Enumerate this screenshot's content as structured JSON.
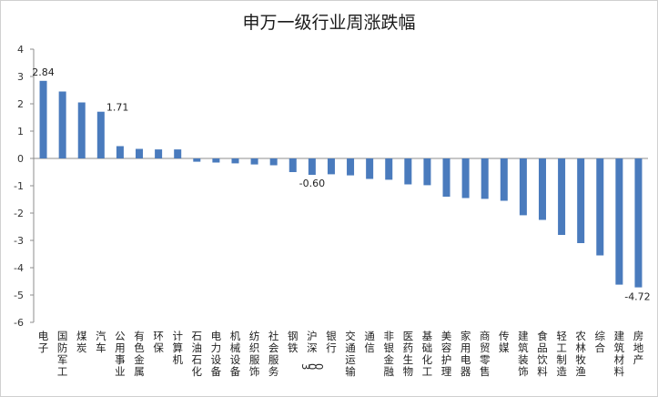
{
  "chart_data": {
    "type": "bar",
    "title": "申万一级行业周涨跌幅",
    "ylim": [
      -6,
      4
    ],
    "yticks": [
      4,
      3,
      2,
      1,
      0,
      -1,
      -2,
      -3,
      -4,
      -5,
      -6
    ],
    "grid": false,
    "legend": "none",
    "bar_color": "#4a7bbd",
    "categories": [
      "电子",
      "国防军工",
      "煤炭",
      "汽车",
      "公用事业",
      "有色金属",
      "环保",
      "计算机",
      "石油石化",
      "电力设备",
      "机械设备",
      "纺织服饰",
      "社会服务",
      "钢铁",
      "沪深300",
      "银行",
      "交通运输",
      "通信",
      "非银金融",
      "医药生物",
      "基础化工",
      "美容护理",
      "家用电器",
      "商贸零售",
      "传媒",
      "建筑装饰",
      "食品饮料",
      "轻工制造",
      "农林牧渔",
      "综合",
      "建筑材料",
      "房地产"
    ],
    "values": [
      2.84,
      2.45,
      2.05,
      1.71,
      0.45,
      0.35,
      0.33,
      0.33,
      -0.12,
      -0.15,
      -0.18,
      -0.22,
      -0.25,
      -0.5,
      -0.6,
      -0.58,
      -0.62,
      -0.75,
      -0.78,
      -0.95,
      -0.98,
      -1.4,
      -1.45,
      -1.48,
      -1.55,
      -2.08,
      -2.25,
      -2.8,
      -3.1,
      -3.55,
      -4.62,
      -4.72
    ],
    "data_labels": [
      {
        "index": 0,
        "text": "2.84"
      },
      {
        "index": 3,
        "text": "1.71"
      },
      {
        "index": 14,
        "text": "-0.60"
      },
      {
        "index": 31,
        "text": "-4.72"
      }
    ]
  }
}
